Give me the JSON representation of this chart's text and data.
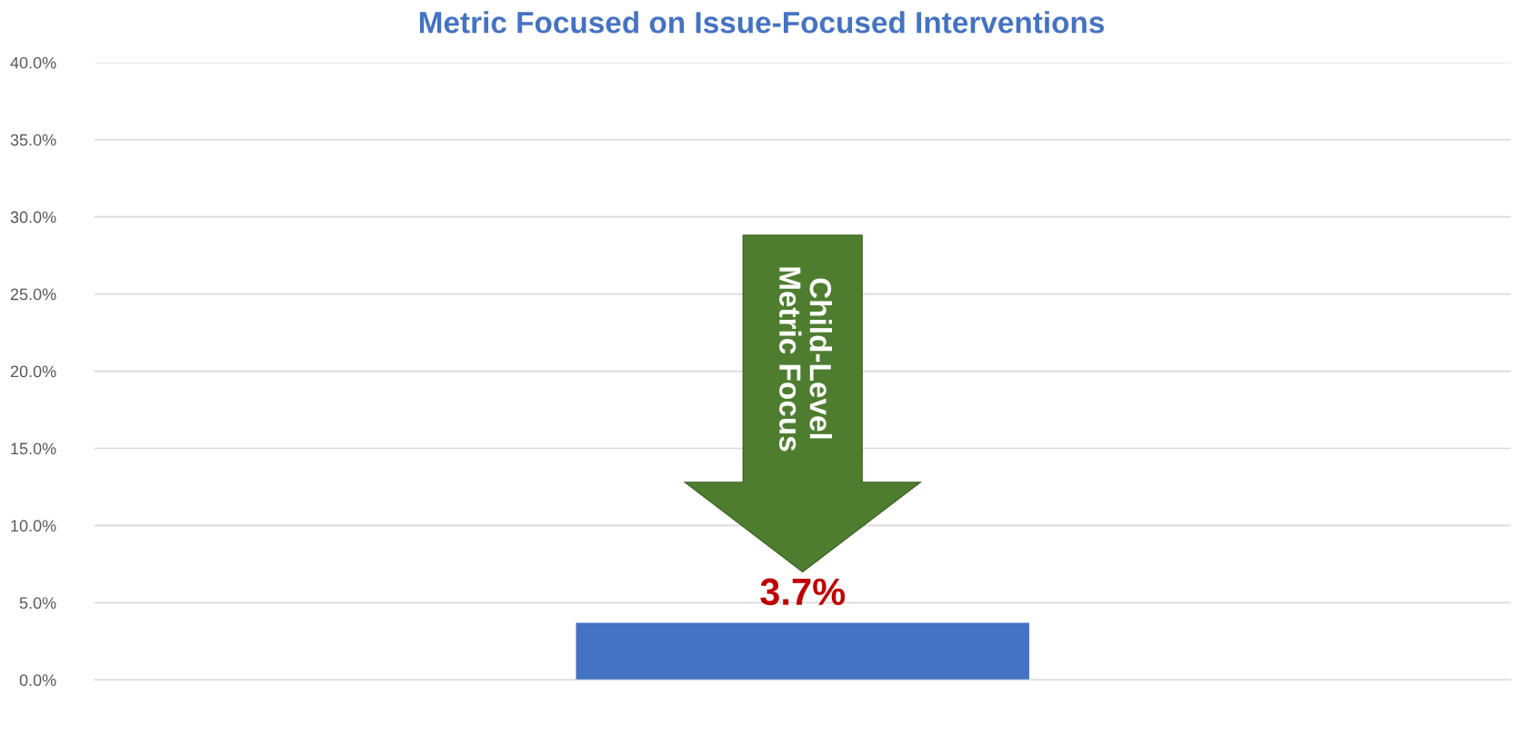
{
  "chart_data": {
    "type": "bar",
    "title": "Metric Focused on Issue-Focused Interventions",
    "categories": [
      null
    ],
    "values": [
      3.7
    ],
    "color": "#4472c4",
    "value_labels": [
      "3.7%"
    ],
    "ylim": [
      0,
      40
    ],
    "yticks": [
      {
        "value": 0,
        "label": "0.0%"
      },
      {
        "value": 5,
        "label": "5.0%"
      },
      {
        "value": 10,
        "label": "10.0%"
      },
      {
        "value": 15,
        "label": "15.0%"
      },
      {
        "value": 20,
        "label": "20.0%"
      },
      {
        "value": 25,
        "label": "25.0%"
      },
      {
        "value": 30,
        "label": "30.0%"
      },
      {
        "value": 35,
        "label": "35.0%"
      },
      {
        "value": 40,
        "label": "40.0%"
      }
    ],
    "grid": "y",
    "annotations": [
      "Child-Level\nMetric Focus"
    ]
  }
}
